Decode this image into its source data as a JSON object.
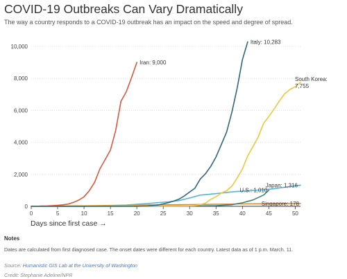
{
  "title": "COVID-19 Outbreaks Can Vary Dramatically",
  "subtitle": "The way a country responds to a COVID-19 outbreak has an impact on the speed and degree of spread.",
  "notes": {
    "heading": "Notes",
    "text": "Dates are calculated from first diagnosed case. The onset dates were different for each country. Latest data as of 1 p.m. March. 11."
  },
  "source": {
    "prefix": "Source: ",
    "link": "Humanistic GIS Lab at the University of Washington"
  },
  "credit": "Credit: Stephanie Adeline/NPR",
  "chart_data": {
    "type": "line",
    "title": "COVID-19 Outbreaks Can Vary Dramatically",
    "xlabel": "Days since first case →",
    "ylabel": "",
    "xlim": [
      0,
      51
    ],
    "ylim": [
      0,
      10000
    ],
    "xticks": [
      0,
      5,
      10,
      15,
      20,
      25,
      30,
      35,
      40,
      45,
      50
    ],
    "yticks": [
      0,
      2000,
      4000,
      6000,
      8000,
      10000
    ],
    "ytick_labels": [
      "0",
      "2,000",
      "4,000",
      "6,000",
      "8,000",
      "10,000"
    ],
    "grid": "horizontal",
    "series": [
      {
        "name": "Iran",
        "label": "Iran: 9,000",
        "color": "#d9583b",
        "x": [
          0,
          1,
          2,
          3,
          4,
          5,
          6,
          7,
          8,
          9,
          10,
          11,
          12,
          13,
          14,
          15,
          16,
          17,
          18,
          19,
          20
        ],
        "y": [
          2,
          5,
          18,
          28,
          43,
          61,
          95,
          139,
          245,
          388,
          593,
          978,
          1501,
          2336,
          2922,
          3513,
          4747,
          6566,
          7161,
          8042,
          9000
        ]
      },
      {
        "name": "Italy",
        "label": "Italy: 10,283",
        "color": "#2f6580",
        "x": [
          0,
          5,
          10,
          15,
          20,
          22,
          24,
          25,
          26,
          27,
          28,
          29,
          30,
          31,
          32,
          33,
          34,
          35,
          36,
          37,
          38,
          39,
          40,
          41
        ],
        "y": [
          2,
          3,
          3,
          3,
          3,
          20,
          80,
          150,
          230,
          330,
          450,
          650,
          890,
          1130,
          1700,
          2040,
          2500,
          3090,
          3860,
          4640,
          5880,
          7380,
          9170,
          10283
        ]
      },
      {
        "name": "South Korea",
        "label": "South Korea: 7,755",
        "label_lines": [
          "South Korea:",
          "7,755"
        ],
        "color": "#f2c53d",
        "x": [
          0,
          10,
          20,
          25,
          28,
          30,
          31,
          32,
          33,
          34,
          35,
          36,
          37,
          38,
          39,
          40,
          41,
          42,
          43,
          44,
          45,
          46,
          47,
          48,
          49,
          50,
          51
        ],
        "y": [
          1,
          20,
          30,
          30,
          30,
          31,
          51,
          104,
          204,
          433,
          602,
          833,
          977,
          1261,
          1766,
          2337,
          3150,
          3736,
          4335,
          5186,
          5621,
          6088,
          6593,
          7041,
          7313,
          7478,
          7755
        ]
      },
      {
        "name": "Japan",
        "label": "Japan: 1,316",
        "color": "#5ab4d9",
        "x": [
          0,
          5,
          10,
          15,
          18,
          20,
          22,
          24,
          26,
          28,
          30,
          32,
          34,
          36,
          38,
          40,
          42,
          44,
          46,
          48,
          50,
          51
        ],
        "y": [
          1,
          3,
          15,
          40,
          80,
          130,
          170,
          230,
          280,
          360,
          520,
          700,
          760,
          830,
          900,
          950,
          990,
          1030,
          1100,
          1190,
          1280,
          1316
        ]
      },
      {
        "name": "U.S.",
        "label": "U.S.: 1,010",
        "color": "#37837b",
        "x": [
          0,
          10,
          20,
          30,
          35,
          38,
          40,
          42,
          44,
          45
        ],
        "y": [
          1,
          5,
          12,
          20,
          40,
          100,
          220,
          400,
          700,
          1010
        ]
      },
      {
        "name": "Singapore",
        "label": "Singapore: 178",
        "color": "#e08a2e",
        "x": [
          0,
          10,
          20,
          30,
          40,
          45,
          51
        ],
        "y": [
          1,
          30,
          80,
          110,
          150,
          160,
          178
        ]
      }
    ]
  }
}
